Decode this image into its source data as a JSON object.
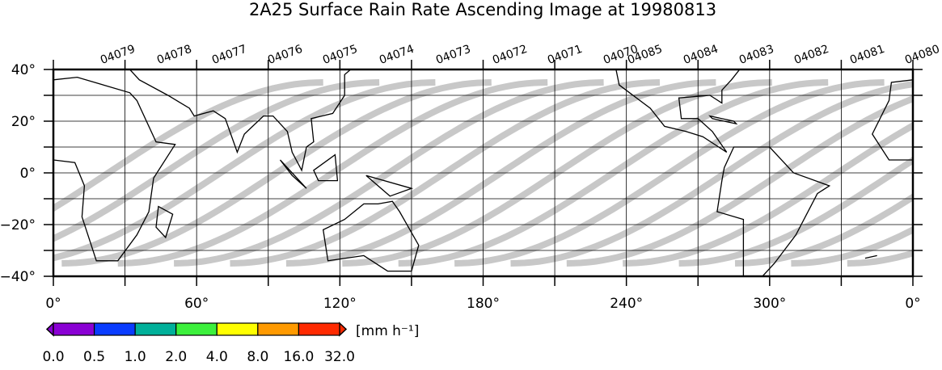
{
  "title": "2A25 Surface Rain Rate Ascending Image at 19980813",
  "orbits": [
    "04079",
    "04078",
    "04077",
    "04076",
    "04075",
    "04074",
    "04073",
    "04072",
    "04071",
    "04070",
    "04085",
    "04084",
    "04083",
    "04082",
    "04081",
    "04080"
  ],
  "lat_labels": [
    "40°",
    "20°",
    "0°",
    "−20°",
    "−40°"
  ],
  "lon_labels": [
    "0°",
    "60°",
    "120°",
    "180°",
    "240°",
    "300°",
    "0°"
  ],
  "colorbar": {
    "unit": "[mm h⁻¹]",
    "labels": [
      "0.0",
      "0.5",
      "1.0",
      "2.0",
      "4.0",
      "8.0",
      "16.0",
      "32.0"
    ],
    "colors": [
      "#8a00d4",
      "#0a3cff",
      "#00b09a",
      "#3cf03c",
      "#ffff00",
      "#ff9a00",
      "#ff2a00"
    ]
  }
}
